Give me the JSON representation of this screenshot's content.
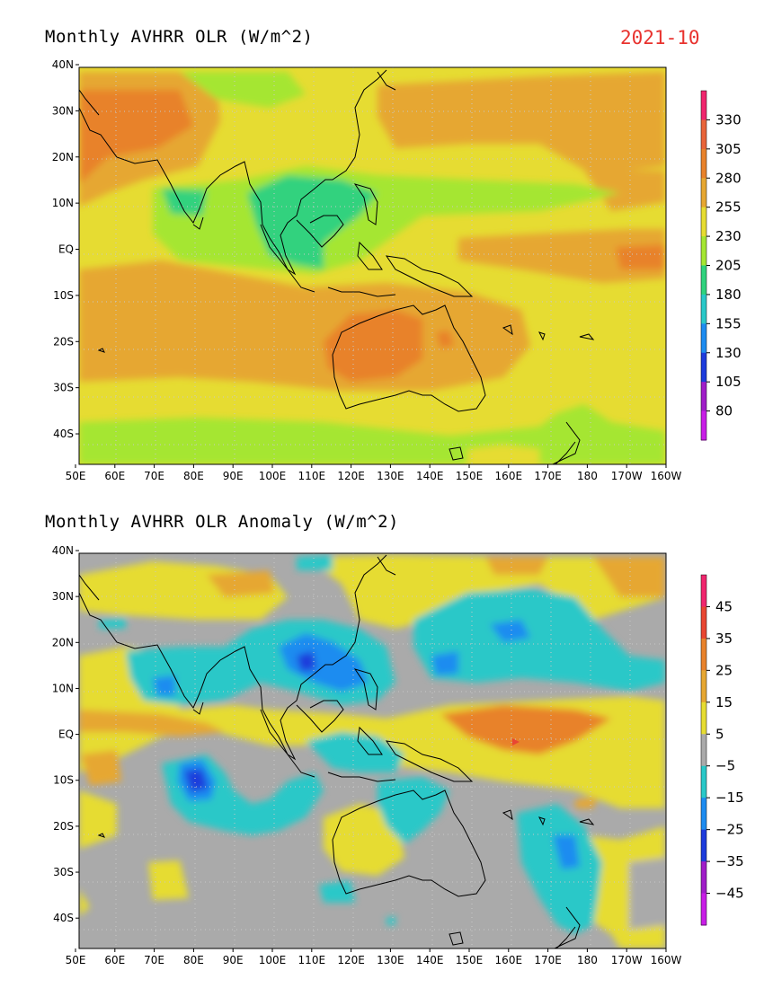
{
  "date_label": "2021-10",
  "lat_labels": [
    "40N",
    "30N",
    "20N",
    "10N",
    "EQ",
    "10S",
    "20S",
    "30S",
    "40S"
  ],
  "lon_labels": [
    "50E",
    "60E",
    "70E",
    "80E",
    "90E",
    "100E",
    "110E",
    "120E",
    "130E",
    "140E",
    "150E",
    "160E",
    "170E",
    "180",
    "170W",
    "160W"
  ],
  "panels": [
    {
      "title": "Monthly AVHRR OLR (W/m^2)",
      "legend": {
        "labels": [
          "330",
          "305",
          "280",
          "255",
          "230",
          "205",
          "180",
          "155",
          "130",
          "105",
          "80"
        ],
        "colors": [
          "#f0266e",
          "#e8643a",
          "#e8822c",
          "#e6a732",
          "#e6dc32",
          "#a5e632",
          "#30d27e",
          "#2ac8c8",
          "#1e8cf0",
          "#1e3cdc",
          "#a01ec8",
          "#c81ee6"
        ]
      }
    },
    {
      "title": "Monthly AVHRR OLR Anomaly (W/m^2)",
      "legend": {
        "labels": [
          "45",
          "35",
          "25",
          "15",
          "5",
          "−5",
          "−15",
          "−25",
          "−35",
          "−45"
        ],
        "colors": [
          "#f0266e",
          "#e84632",
          "#e8822c",
          "#e6a732",
          "#e6dc32",
          "#aaaaaa",
          "#2ac8c8",
          "#1e8cf0",
          "#1e3cdc",
          "#a01ec8",
          "#c81ee6"
        ]
      }
    }
  ]
}
